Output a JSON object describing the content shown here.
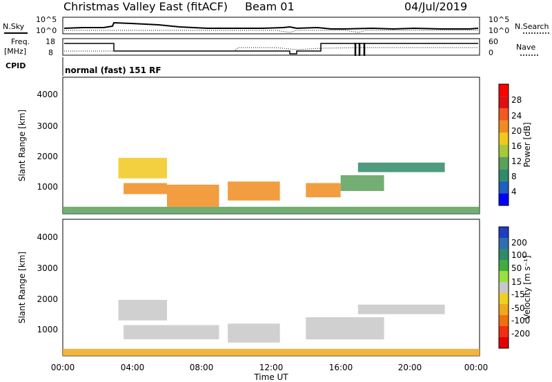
{
  "header": {
    "title": "Christmas Valley East (fitACF)",
    "beam": "Beam 01",
    "date": "04/Jul/2019"
  },
  "top_panels": {
    "nsky_label": "N.Sky",
    "nsearch_label": "N.Search",
    "noise_ticks": [
      "10^5",
      "10^0"
    ],
    "freq_label_1": "Freq.",
    "freq_label_2": "[MHz]",
    "freq_ticks": [
      "18",
      "8"
    ],
    "nave_label": "Nave",
    "nave_ticks": [
      "60",
      "0"
    ],
    "cpid_label": "CPID",
    "mode_text": "normal (fast) 151 RF"
  },
  "x_axis": {
    "label": "Time UT",
    "ticks": [
      "00:00",
      "04:00",
      "08:00",
      "12:00",
      "16:00",
      "20:00",
      "00:00"
    ]
  },
  "colorbars": {
    "power": {
      "label": "Power [dB]",
      "ticks": [
        "28",
        "24",
        "20",
        "16",
        "12",
        "8",
        "4"
      ],
      "colors": [
        "#0000ff",
        "#1f5fc0",
        "#2f8a6a",
        "#5aa05a",
        "#a8c83a",
        "#f0c81e",
        "#f08c1e",
        "#f05a1e",
        "#e01010",
        "#ff0000"
      ]
    },
    "velocity": {
      "label": "Velocity [m s⁻¹]",
      "ticks": [
        "200",
        "100",
        "50",
        "15",
        "-15",
        "-50",
        "-100",
        "-200"
      ],
      "colors": [
        "#1f3fbf",
        "#2f6fb0",
        "#2f8a6a",
        "#3fae3f",
        "#9be040",
        "#c8c8c8",
        "#f0d01e",
        "#f0a81e",
        "#f07010",
        "#f03010",
        "#e00000"
      ]
    }
  },
  "chart_data": [
    {
      "type": "heatmap",
      "title": "Power",
      "ylabel": "Slant Range [km]",
      "xlabel": "",
      "xlim": [
        "00:00",
        "24:00"
      ],
      "ylim": [
        180,
        4500
      ],
      "y_ticks": [
        1000,
        2000,
        3000,
        4000
      ],
      "color_scale": "Power [dB]",
      "regions": [
        {
          "t_start": 3.2,
          "t_end": 6.0,
          "r_lo": 1300,
          "r_hi": 1950,
          "value_db": 18
        },
        {
          "t_start": 3.5,
          "t_end": 6.0,
          "r_lo": 800,
          "r_hi": 1150,
          "value_db": 22
        },
        {
          "t_start": 6.0,
          "t_end": 9.0,
          "r_lo": 400,
          "r_hi": 1100,
          "value_db": 20
        },
        {
          "t_start": 9.5,
          "t_end": 12.5,
          "r_lo": 600,
          "r_hi": 1200,
          "value_db": 22
        },
        {
          "t_start": 14.0,
          "t_end": 16.0,
          "r_lo": 700,
          "r_hi": 1150,
          "value_db": 20
        },
        {
          "t_start": 16.0,
          "t_end": 18.5,
          "r_lo": 900,
          "r_hi": 1400,
          "value_db": 12
        },
        {
          "t_start": 17.0,
          "t_end": 22.0,
          "r_lo": 1500,
          "r_hi": 1800,
          "value_db": 8
        },
        {
          "t_start": 0.0,
          "t_end": 24.0,
          "r_lo": 180,
          "r_hi": 400,
          "value_db": 10
        }
      ]
    },
    {
      "type": "heatmap",
      "title": "Velocity",
      "ylabel": "Slant Range [km]",
      "xlabel": "Time UT",
      "xlim": [
        "00:00",
        "24:00"
      ],
      "ylim": [
        180,
        4500
      ],
      "y_ticks": [
        1000,
        2000,
        3000,
        4000
      ],
      "color_scale": "Velocity [m s-1]",
      "regions": [
        {
          "t_start": 3.2,
          "t_end": 6.0,
          "r_lo": 1300,
          "r_hi": 1950,
          "value_ms": 0
        },
        {
          "t_start": 3.5,
          "t_end": 9.0,
          "r_lo": 700,
          "r_hi": 1150,
          "value_ms": 0
        },
        {
          "t_start": 9.5,
          "t_end": 12.5,
          "r_lo": 600,
          "r_hi": 1200,
          "value_ms": 0
        },
        {
          "t_start": 14.0,
          "t_end": 18.5,
          "r_lo": 700,
          "r_hi": 1400,
          "value_ms": 0
        },
        {
          "t_start": 17.0,
          "t_end": 22.0,
          "r_lo": 1500,
          "r_hi": 1800,
          "value_ms": 0
        },
        {
          "t_start": 0.0,
          "t_end": 24.0,
          "r_lo": 180,
          "r_hi": 400,
          "value_ms": -30
        }
      ]
    }
  ]
}
